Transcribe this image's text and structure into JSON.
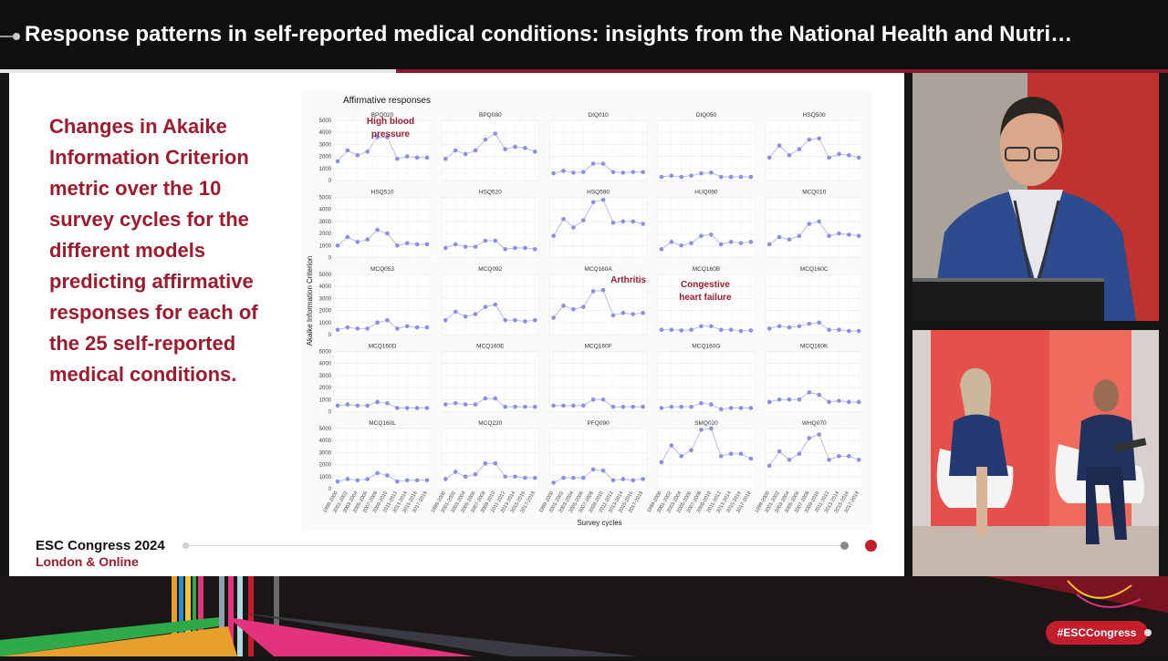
{
  "header": {
    "title": "Response patterns in self-reported medical conditions: insights from the National Health and Nutri…"
  },
  "slide": {
    "text": "Changes in Akaike Information Criterion metric over the 10 survey cycles for the different models predicting affirmative responses for each of the 25 self-reported medical conditions.",
    "brand_line1": "ESC Congress 2024",
    "brand_line2": "London & Online"
  },
  "chart_data": {
    "type": "line",
    "title": "Affirmative responses",
    "xlabel": "Survey cycles",
    "ylabel": "Akaike Information Criterion",
    "ylim": [
      0,
      5000
    ],
    "yticks": [
      0,
      1000,
      2000,
      3000,
      4000,
      5000
    ],
    "x": [
      "1999-2000",
      "2001-2002",
      "2003-2004",
      "2005-2006",
      "2007-2008",
      "2009-2010",
      "2011-2012",
      "2013-2014",
      "2015-2016",
      "2017-2018"
    ],
    "point_color": "#8a8fe6",
    "line_color": "#b9bbf0",
    "panels": [
      {
        "name": "BPQ020",
        "values": [
          1600,
          2500,
          2100,
          2400,
          3600,
          3600,
          1800,
          2000,
          1900,
          1900
        ]
      },
      {
        "name": "BPQ080",
        "values": [
          1800,
          2500,
          2200,
          2500,
          3400,
          3900,
          2600,
          2800,
          2700,
          2400
        ]
      },
      {
        "name": "DIQ010",
        "values": [
          600,
          800,
          650,
          700,
          1400,
          1400,
          700,
          650,
          700,
          700
        ]
      },
      {
        "name": "DIQ050",
        "values": [
          300,
          400,
          300,
          400,
          600,
          650,
          300,
          300,
          300,
          300
        ]
      },
      {
        "name": "HSQ500",
        "values": [
          1900,
          2900,
          2100,
          2600,
          3400,
          3500,
          1900,
          2200,
          2100,
          1900
        ]
      },
      {
        "name": "HSQ510",
        "values": [
          1000,
          1700,
          1300,
          1500,
          2300,
          2000,
          1000,
          1200,
          1100,
          1100
        ]
      },
      {
        "name": "HSQ520",
        "values": [
          800,
          1100,
          900,
          900,
          1400,
          1400,
          700,
          800,
          800,
          700
        ]
      },
      {
        "name": "HSQ590",
        "values": [
          1800,
          3200,
          2500,
          3100,
          4600,
          4800,
          2900,
          3000,
          3000,
          2800
        ]
      },
      {
        "name": "HUQ090",
        "values": [
          700,
          1300,
          1000,
          1200,
          1800,
          1900,
          1100,
          1300,
          1200,
          1300
        ]
      },
      {
        "name": "MCQ010",
        "values": [
          1100,
          1700,
          1500,
          1800,
          2800,
          3000,
          1800,
          2000,
          1900,
          1800
        ]
      },
      {
        "name": "MCQ053",
        "values": [
          400,
          600,
          500,
          500,
          1000,
          1200,
          500,
          700,
          600,
          600
        ]
      },
      {
        "name": "MCQ092",
        "values": [
          1200,
          1900,
          1500,
          1700,
          2300,
          2500,
          1200,
          1200,
          1100,
          1200
        ]
      },
      {
        "name": "MCQ160A",
        "values": [
          1400,
          2400,
          2100,
          2300,
          3600,
          3700,
          1600,
          1800,
          1700,
          1800
        ]
      },
      {
        "name": "MCQ160B",
        "values": [
          400,
          400,
          350,
          400,
          700,
          700,
          400,
          400,
          300,
          350
        ]
      },
      {
        "name": "MCQ160C",
        "values": [
          500,
          700,
          600,
          700,
          900,
          1000,
          400,
          400,
          300,
          300
        ]
      },
      {
        "name": "MCQ160D",
        "values": [
          500,
          600,
          500,
          500,
          800,
          700,
          300,
          300,
          300,
          300
        ]
      },
      {
        "name": "MCQ160E",
        "values": [
          600,
          700,
          600,
          600,
          1100,
          1100,
          400,
          400,
          400,
          400
        ]
      },
      {
        "name": "MCQ160F",
        "values": [
          500,
          500,
          500,
          500,
          1000,
          1000,
          400,
          400,
          400,
          400
        ]
      },
      {
        "name": "MCQ160G",
        "values": [
          300,
          400,
          400,
          400,
          700,
          600,
          200,
          300,
          300,
          300
        ]
      },
      {
        "name": "MCQ160K",
        "values": [
          800,
          1000,
          1000,
          1000,
          1600,
          1400,
          800,
          900,
          800,
          800
        ]
      },
      {
        "name": "MCQ160L",
        "values": [
          600,
          800,
          700,
          800,
          1300,
          1100,
          600,
          700,
          700,
          700
        ]
      },
      {
        "name": "MCQ220",
        "values": [
          800,
          1400,
          1000,
          1200,
          2100,
          2100,
          1000,
          1000,
          900,
          900
        ]
      },
      {
        "name": "PFQ090",
        "values": [
          500,
          900,
          900,
          900,
          1600,
          1500,
          700,
          800,
          700,
          800
        ]
      },
      {
        "name": "SMQ020",
        "values": [
          2200,
          3600,
          2700,
          3200,
          4900,
          5000,
          2700,
          2900,
          2900,
          2500
        ]
      },
      {
        "name": "WHQ070",
        "values": [
          1900,
          3100,
          2400,
          2900,
          4200,
          4500,
          2400,
          2700,
          2700,
          2400
        ]
      }
    ],
    "annotations": [
      {
        "panel": "BPQ020",
        "text": "High blood pressure"
      },
      {
        "panel": "MCQ160A",
        "text": "Arthritis"
      },
      {
        "panel": "MCQ160B",
        "text": "Congestive heart failure"
      }
    ]
  },
  "footer": {
    "hashtag": "#ESCCongress"
  },
  "colors": {
    "brand_red": "#a01a2e",
    "accent_red": "#c41d2c",
    "progress_active": "#c41d2c"
  }
}
